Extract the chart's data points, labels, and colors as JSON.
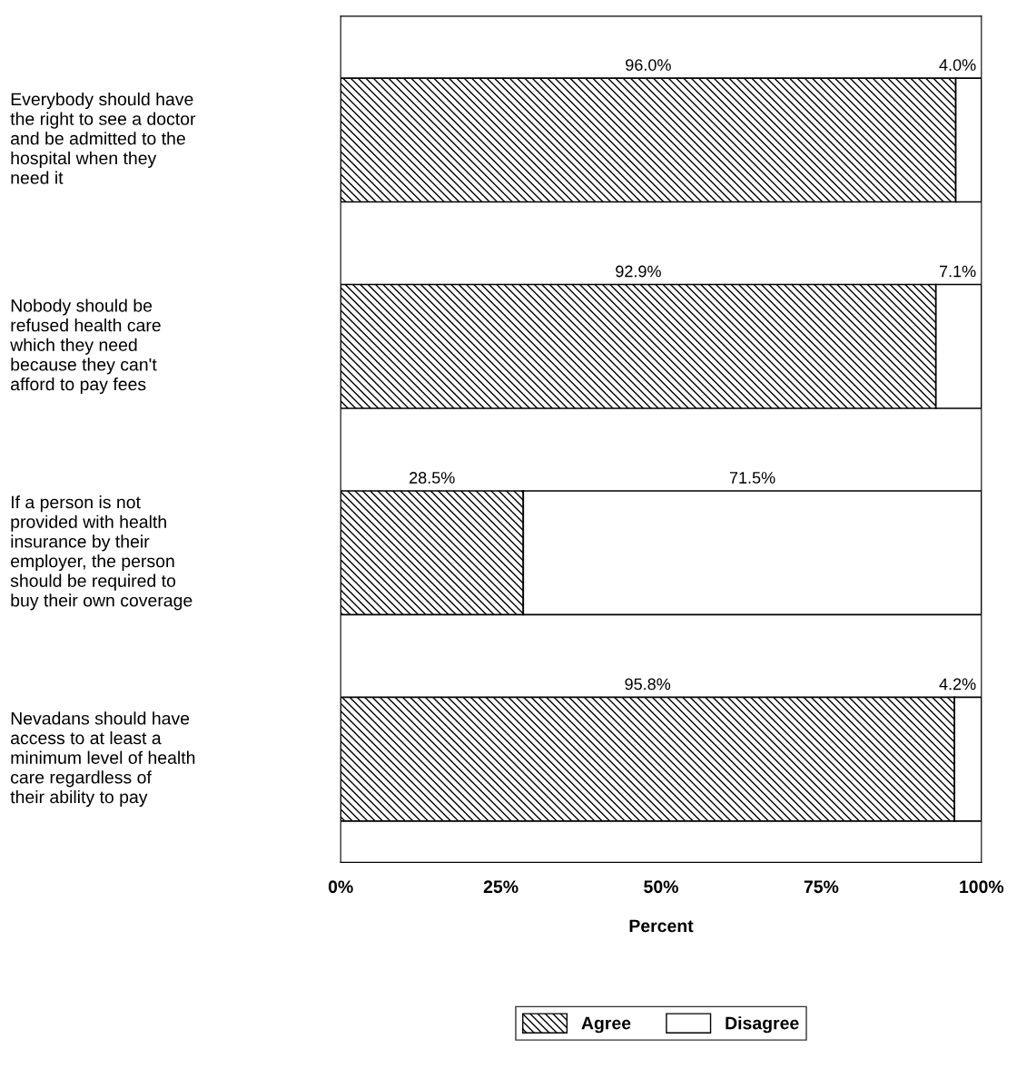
{
  "chart_data": {
    "type": "bar",
    "orientation": "horizontal",
    "stacked": true,
    "categories": [
      "Everybody should have\nthe right to see a doctor\nand be admitted to the\nhospital when they\nneed it",
      "Nobody should be\nrefused health care\nwhich they need\nbecause they can't\nafford to pay fees",
      "If a person is not\nprovided with health\ninsurance by their\nemployer, the person\nshould be required to\nbuy their own coverage",
      "Nevadans should have\naccess to at least a\nminimum level of health\ncare regardless of\ntheir ability to pay"
    ],
    "series": [
      {
        "name": "Agree",
        "color": "#000000",
        "values": [
          96.0,
          92.9,
          28.5,
          95.8
        ],
        "value_labels": [
          "96.0%",
          "92.9%",
          "28.5%",
          "95.8%"
        ]
      },
      {
        "name": "Disagree",
        "color": "#ffffff",
        "values": [
          4.0,
          7.1,
          71.5,
          4.2
        ],
        "value_labels": [
          "4.0%",
          "7.1%",
          "71.5%",
          "4.2%"
        ]
      }
    ],
    "xlim": [
      0,
      100
    ],
    "xticks": [
      {
        "value": 0,
        "label": "0%"
      },
      {
        "value": 25,
        "label": "25%"
      },
      {
        "value": 50,
        "label": "50%"
      },
      {
        "value": 75,
        "label": "75%"
      },
      {
        "value": 100,
        "label": "100%"
      }
    ],
    "xlabel": "Percent",
    "legend": "bottom",
    "grid": false
  }
}
